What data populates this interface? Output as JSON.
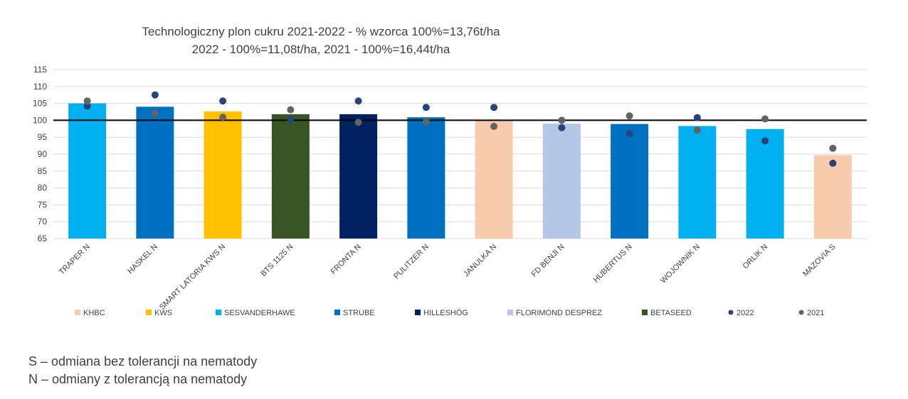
{
  "chart_data": {
    "type": "bar",
    "title": "Technologiczny plon cukru 2021-2022 - % wzorca 100%=13,76t/ha",
    "subtitle": "2022 - 100%=11,08t/ha, 2021 - 100%=16,44t/ha",
    "ylim": [
      65,
      115
    ],
    "yticks": [
      65,
      70,
      75,
      80,
      85,
      90,
      95,
      100,
      105,
      110,
      115
    ],
    "reference_line": 100,
    "grid": true,
    "legend_position": "bottom",
    "categories": [
      "TRAPER N",
      "HASKEL N",
      "SMART LATORIA KWS N",
      "BTS 1125 N",
      "FRONTA N",
      "PULITZER N",
      "JANULKA N",
      "FD BENJI N",
      "HUBERTUS N",
      "WOJOWNIK N",
      "ORLIK N",
      "MAZOVIA S"
    ],
    "values": [
      105,
      104,
      102.6,
      101.8,
      101.8,
      100.9,
      100,
      99,
      98.9,
      98.3,
      97.4,
      89.7
    ],
    "bar_breeders": [
      "SESVANDERHAWE",
      "STRUBE",
      "KWS",
      "BETASEED",
      "HILLESHÖG",
      "STRUBE",
      "KHBC",
      "FLORIMOND DESPREZ",
      "STRUBE",
      "SESVANDERHAWE",
      "SESVANDERHAWE",
      "KHBC"
    ],
    "series": [
      {
        "name": "2022",
        "color": "#264478",
        "values": [
          104.2,
          107.5,
          105.7,
          100.3,
          105.7,
          103.8,
          103.8,
          97.8,
          96.1,
          100.8,
          93.9,
          87.3
        ]
      },
      {
        "name": "2021",
        "color": "#636363",
        "values": [
          105.7,
          102.1,
          100.9,
          103.1,
          99.4,
          99.6,
          98.2,
          100,
          101.3,
          97.1,
          100.4,
          91.7
        ]
      }
    ],
    "legend": [
      {
        "label": "KHBC",
        "color": "#F8CBAD",
        "shape": "square"
      },
      {
        "label": "KWS",
        "color": "#FFC000",
        "shape": "square"
      },
      {
        "label": "SESVANDERHAWE",
        "color": "#00B0F0",
        "shape": "square"
      },
      {
        "label": "STRUBE",
        "color": "#0070C0",
        "shape": "square"
      },
      {
        "label": "HILLESHÖG",
        "color": "#002060",
        "shape": "square"
      },
      {
        "label": "FLORIMOND DESPREZ",
        "color": "#B4C7E7",
        "shape": "square"
      },
      {
        "label": "BETASEED",
        "color": "#375623",
        "shape": "square"
      },
      {
        "label": "2022",
        "color": "#264478",
        "shape": "circle"
      },
      {
        "label": "2021",
        "color": "#636363",
        "shape": "circle"
      }
    ]
  },
  "notes": {
    "line1": "S – odmiana bez tolerancji na nematody",
    "line2": "N – odmiany z tolerancją na nematody"
  }
}
